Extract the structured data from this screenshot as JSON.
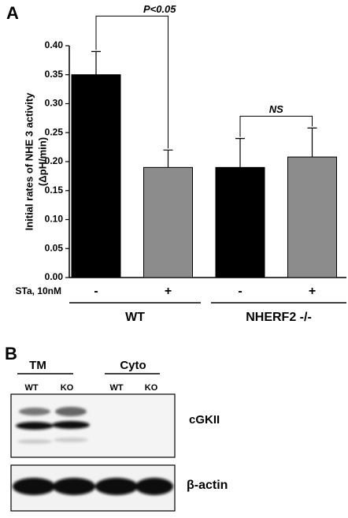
{
  "chart_data": {
    "type": "bar",
    "panel_label": "A",
    "y_label": [
      "Initial rates of NHE 3 activity",
      "(ΔpH/min)"
    ],
    "x_row_label": "STa, 10nM",
    "categories": [
      "-",
      "+",
      "-",
      "+"
    ],
    "values": [
      0.35,
      0.19,
      0.19,
      0.208
    ],
    "errors": [
      0.04,
      0.03,
      0.05,
      0.05
    ],
    "colors": [
      "#000000",
      "#8c8c8c",
      "#000000",
      "#8c8c8c"
    ],
    "groups": [
      "WT",
      "NHERF2 -/-"
    ],
    "annotations": [
      "P<0.05",
      "NS"
    ],
    "ylim": [
      0,
      0.4
    ],
    "yticks": [
      {
        "value": 0,
        "label": "0.00"
      },
      {
        "value": 0.05,
        "label": "0.05"
      },
      {
        "value": 0.1,
        "label": "0.10"
      },
      {
        "value": 0.15,
        "label": "0.15"
      },
      {
        "value": 0.2,
        "label": "0.20"
      },
      {
        "value": 0.25,
        "label": "0.25"
      },
      {
        "value": 0.3,
        "label": "0.30"
      },
      {
        "value": 0.35,
        "label": "0.35"
      },
      {
        "value": 0.4,
        "label": "0.40"
      }
    ]
  },
  "blot": {
    "panel_label": "B",
    "groups": [
      {
        "label": "TM",
        "lanes": [
          "WT",
          "KO"
        ]
      },
      {
        "label": "Cyto",
        "lanes": [
          "WT",
          "KO"
        ]
      }
    ],
    "rows": [
      "cGKII",
      "β-actin"
    ]
  }
}
